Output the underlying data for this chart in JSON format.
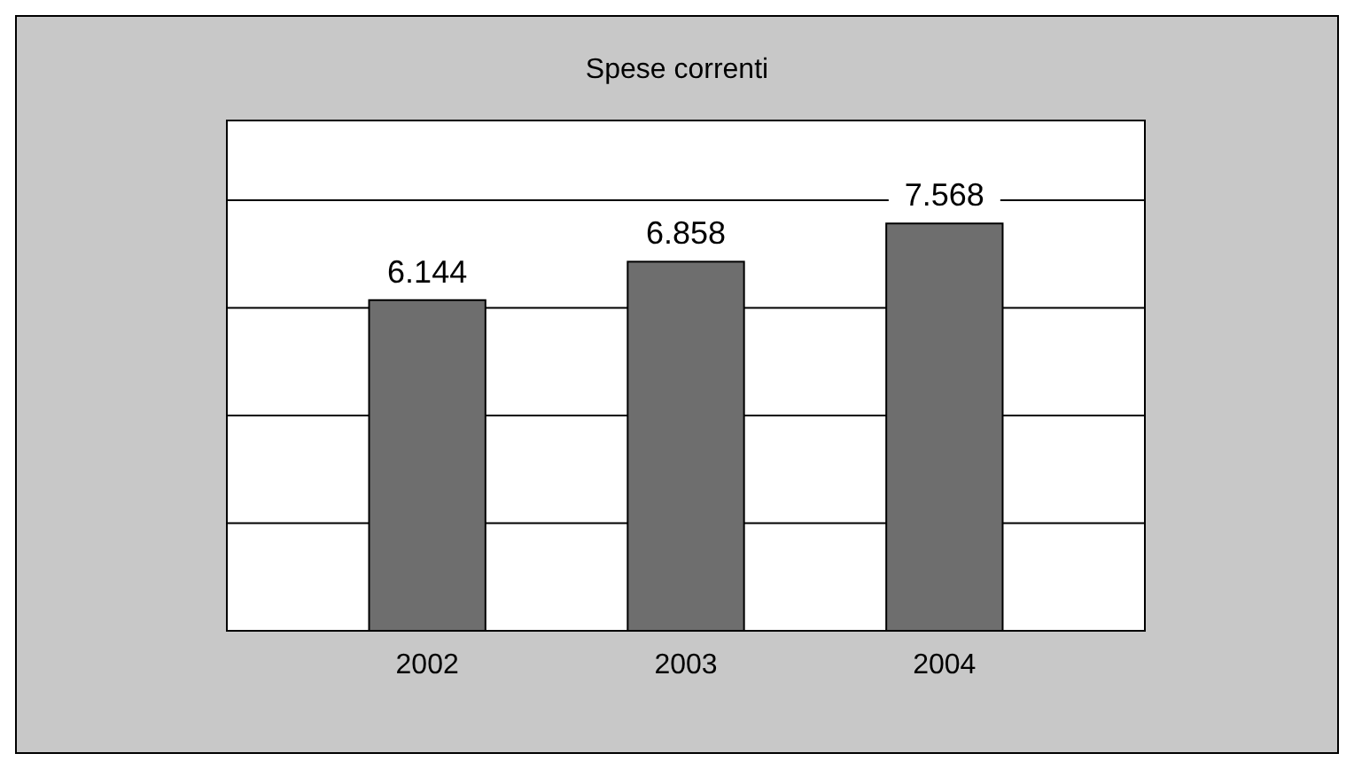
{
  "chart_data": {
    "type": "bar",
    "title": "Spese correnti",
    "categories": [
      "2002",
      "2003",
      "2004"
    ],
    "values": [
      6144,
      6858,
      7568
    ],
    "value_labels": [
      "6.144",
      "6.858",
      "7.568"
    ],
    "color": "#6e6e6e",
    "ylim": [
      0,
      8000
    ],
    "yticks": [
      {
        "value": 0,
        "label": null
      },
      {
        "value": 2000,
        "label": null
      },
      {
        "value": 4000,
        "label": null
      },
      {
        "value": 6000,
        "label": null
      },
      {
        "value": 8000,
        "label": null
      }
    ],
    "grid": true,
    "tick_labels": "x"
  }
}
